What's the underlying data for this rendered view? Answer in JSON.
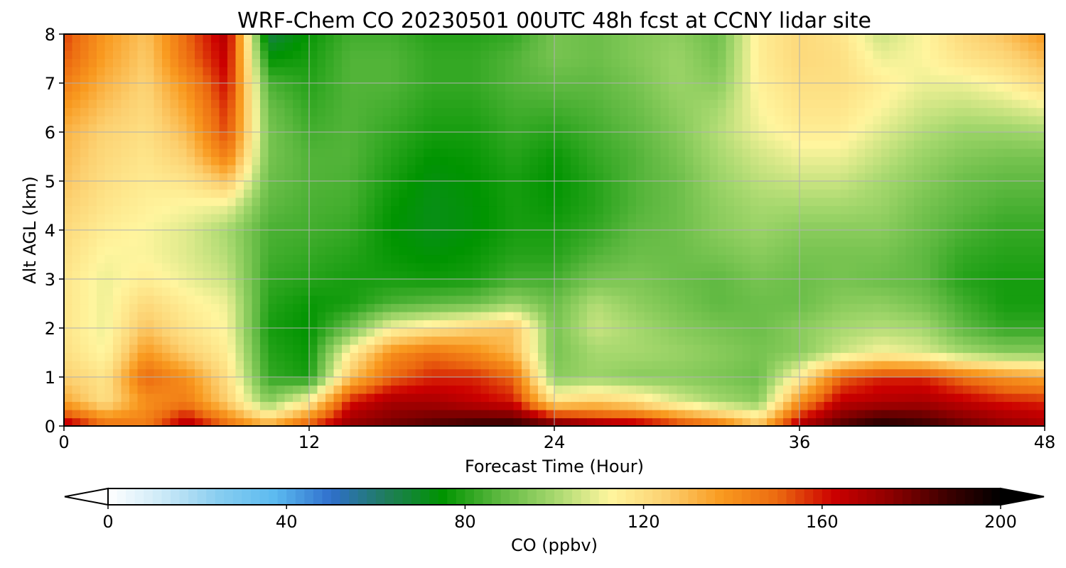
{
  "chart_data": {
    "type": "heatmap",
    "title": "WRF-Chem CO  20230501 00UTC 48h fcst at CCNY lidar site",
    "xlabel": "Forecast Time (Hour)",
    "ylabel": "Alt AGL (km)",
    "xlim": [
      0,
      48
    ],
    "ylim": [
      0,
      8
    ],
    "x_ticks": [
      0,
      12,
      24,
      36,
      48
    ],
    "y_ticks": [
      0,
      1,
      2,
      3,
      4,
      5,
      6,
      7,
      8
    ],
    "grid": true,
    "x": [
      0,
      2,
      4,
      6,
      8,
      10,
      12,
      14,
      16,
      18,
      20,
      22,
      24,
      26,
      28,
      30,
      32,
      34,
      36,
      38,
      40,
      42,
      44,
      46,
      48
    ],
    "y": [
      0,
      0.5,
      1,
      1.5,
      2,
      2.5,
      3,
      3.5,
      4,
      4.5,
      5,
      5.5,
      6,
      6.5,
      7,
      7.5,
      8
    ],
    "z": [
      [
        170,
        150,
        145,
        170,
        150,
        135,
        155,
        175,
        180,
        185,
        190,
        192,
        185,
        175,
        170,
        160,
        150,
        130,
        170,
        185,
        195,
        190,
        182,
        175,
        170
      ],
      [
        135,
        120,
        140,
        145,
        125,
        95,
        115,
        160,
        170,
        170,
        165,
        160,
        120,
        125,
        120,
        108,
        100,
        95,
        140,
        165,
        168,
        170,
        165,
        160,
        158
      ],
      [
        125,
        118,
        150,
        140,
        120,
        82,
        78,
        128,
        150,
        158,
        158,
        150,
        95,
        98,
        95,
        95,
        93,
        90,
        115,
        150,
        158,
        158,
        148,
        140,
        135
      ],
      [
        120,
        112,
        138,
        125,
        115,
        80,
        76,
        115,
        140,
        148,
        142,
        130,
        92,
        100,
        100,
        98,
        95,
        92,
        95,
        105,
        112,
        108,
        100,
        95,
        95
      ],
      [
        118,
        110,
        128,
        118,
        112,
        78,
        75,
        90,
        112,
        118,
        124,
        128,
        92,
        105,
        100,
        95,
        92,
        90,
        95,
        100,
        102,
        100,
        88,
        82,
        82
      ],
      [
        118,
        110,
        122,
        115,
        110,
        80,
        76,
        78,
        85,
        88,
        90,
        98,
        90,
        102,
        96,
        92,
        88,
        90,
        90,
        95,
        96,
        92,
        84,
        78,
        78
      ],
      [
        118,
        110,
        115,
        110,
        105,
        82,
        80,
        78,
        78,
        77,
        78,
        84,
        84,
        92,
        93,
        90,
        88,
        92,
        90,
        92,
        90,
        88,
        80,
        78,
        78
      ],
      [
        120,
        112,
        112,
        108,
        102,
        84,
        82,
        80,
        76,
        74,
        76,
        80,
        80,
        86,
        90,
        90,
        92,
        95,
        92,
        92,
        92,
        88,
        82,
        80,
        80
      ],
      [
        122,
        115,
        112,
        108,
        100,
        85,
        84,
        82,
        75,
        72,
        74,
        78,
        78,
        82,
        88,
        90,
        95,
        98,
        95,
        95,
        95,
        90,
        85,
        82,
        82
      ],
      [
        125,
        118,
        114,
        112,
        110,
        88,
        85,
        84,
        76,
        72,
        74,
        78,
        76,
        80,
        86,
        90,
        96,
        100,
        100,
        100,
        98,
        92,
        88,
        85,
        85
      ],
      [
        128,
        120,
        116,
        118,
        128,
        90,
        86,
        85,
        78,
        73,
        75,
        78,
        75,
        80,
        86,
        90,
        98,
        103,
        105,
        105,
        100,
        95,
        90,
        88,
        88
      ],
      [
        130,
        122,
        118,
        125,
        145,
        92,
        86,
        86,
        80,
        75,
        76,
        80,
        76,
        82,
        86,
        92,
        100,
        106,
        110,
        110,
        104,
        98,
        94,
        92,
        92
      ],
      [
        132,
        124,
        120,
        130,
        155,
        92,
        84,
        86,
        82,
        78,
        78,
        82,
        80,
        84,
        88,
        94,
        102,
        110,
        115,
        115,
        108,
        102,
        98,
        98,
        100
      ],
      [
        138,
        128,
        122,
        135,
        158,
        90,
        82,
        86,
        84,
        80,
        80,
        84,
        84,
        86,
        90,
        96,
        100,
        112,
        118,
        118,
        112,
        106,
        104,
        106,
        110
      ],
      [
        145,
        132,
        124,
        140,
        162,
        85,
        80,
        86,
        86,
        82,
        82,
        86,
        88,
        88,
        92,
        98,
        95,
        114,
        120,
        120,
        115,
        110,
        110,
        114,
        122
      ],
      [
        152,
        136,
        126,
        148,
        165,
        75,
        78,
        86,
        86,
        82,
        82,
        86,
        92,
        90,
        94,
        98,
        92,
        115,
        122,
        120,
        110,
        112,
        118,
        122,
        130
      ],
      [
        155,
        138,
        128,
        150,
        168,
        65,
        76,
        84,
        84,
        80,
        80,
        82,
        92,
        90,
        94,
        96,
        90,
        115,
        122,
        118,
        105,
        112,
        122,
        128,
        138
      ]
    ],
    "colorbar": {
      "label": "CO  (ppbv)",
      "ticks": [
        0,
        40,
        80,
        120,
        160,
        200
      ],
      "range": [
        0,
        200
      ],
      "extend": "both",
      "colors": [
        "#ffffff",
        "#cbe9f7",
        "#87cdf0",
        "#5bbaf0",
        "#2f6fcc",
        "#1f7d5a",
        "#009400",
        "#5db840",
        "#a6d86e",
        "#fff59e",
        "#fcd070",
        "#f99a1f",
        "#ec6a10",
        "#cc0000",
        "#8f0000",
        "#400000",
        "#000000"
      ]
    }
  }
}
